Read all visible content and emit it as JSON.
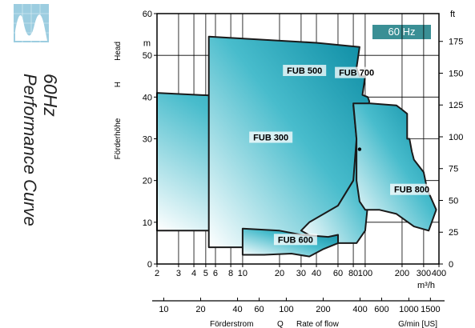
{
  "header": {
    "freq_title": "60Hz",
    "subtitle": "Performance Curve",
    "badge": "60 Hz",
    "logo_icon": "performance-curve-logo-icon"
  },
  "chart_data": {
    "type": "area",
    "xscale": "log",
    "xlim": [
      2,
      400
    ],
    "ylim": [
      0,
      60
    ],
    "x_ticks": [
      2,
      3,
      4,
      5,
      6,
      8,
      10,
      20,
      30,
      40,
      60,
      80,
      100,
      200,
      300,
      400
    ],
    "x_tick_labels": [
      "2",
      "3",
      "4",
      "5",
      "6",
      "8",
      "10",
      "20",
      "30",
      "40",
      "60",
      "80",
      "100",
      "200",
      "300",
      "400"
    ],
    "xunit": "m³/h",
    "y_ticks": [
      0,
      10,
      20,
      30,
      40,
      50,
      60
    ],
    "yunit": "m",
    "ylabel_de": "Förderhöhe",
    "ylabel_sym": "H",
    "ylabel_en": "Head",
    "ft_unit": "ft",
    "ft_ticks": [
      0,
      25,
      50,
      75,
      100,
      125,
      150,
      175
    ],
    "gpm_ticks": [
      10,
      20,
      40,
      60,
      100,
      200,
      400,
      600,
      1000,
      1500
    ],
    "gpm_label_de": "Förderstrom",
    "gpm_label_sym": "Q",
    "gpm_label_en": "Rate of flow",
    "gpm_unit": "G/min [US]",
    "grid": true,
    "series": [
      {
        "name": "FUB 300",
        "label_at": [
          17,
          30
        ],
        "points": [
          [
            2,
            41
          ],
          [
            10,
            40
          ],
          [
            30,
            37
          ],
          [
            100,
            36.5
          ],
          [
            130,
            36
          ],
          [
            130,
            31
          ],
          [
            140,
            31
          ],
          [
            140,
            27
          ],
          [
            130,
            20
          ],
          [
            80,
            12
          ],
          [
            50,
            8.5
          ],
          [
            20,
            8
          ],
          [
            10,
            8
          ],
          [
            5,
            8
          ],
          [
            2,
            8
          ]
        ]
      },
      {
        "name": "FUB 500",
        "label_at": [
          32,
          46
        ],
        "points": [
          [
            5.3,
            54.5
          ],
          [
            40,
            53
          ],
          [
            90,
            52
          ],
          [
            85,
            47
          ],
          [
            90,
            45
          ],
          [
            100,
            45
          ],
          [
            95,
            40.5
          ],
          [
            105,
            40
          ],
          [
            108,
            39
          ],
          [
            100,
            30
          ],
          [
            80,
            20
          ],
          [
            60,
            14
          ],
          [
            30,
            4
          ],
          [
            20,
            4
          ],
          [
            5.3,
            4
          ]
        ]
      },
      {
        "name": "FUB 700",
        "label_at": [
          85,
          45.5
        ],
        "points": [
          [
            80,
            38
          ],
          [
            90,
            38
          ],
          [
            100,
            36
          ],
          [
            110,
            36
          ],
          [
            130,
            35
          ],
          [
            120,
            33
          ],
          [
            110,
            25
          ],
          [
            110,
            20
          ],
          [
            100,
            8
          ],
          [
            85,
            5
          ],
          [
            50,
            5
          ],
          [
            40,
            6
          ],
          [
            30,
            8
          ],
          [
            35,
            10
          ],
          [
            60,
            14
          ],
          [
            80,
            20
          ],
          [
            85,
            30
          ],
          [
            80,
            38
          ]
        ]
      },
      {
        "name": "FUB 800",
        "label_at": [
          240,
          17.5
        ],
        "points": [
          [
            80,
            38.5
          ],
          [
            110,
            38.5
          ],
          [
            180,
            38
          ],
          [
            200,
            37
          ],
          [
            220,
            36
          ],
          [
            220,
            30
          ],
          [
            230,
            30
          ],
          [
            240,
            27
          ],
          [
            250,
            25
          ],
          [
            300,
            22
          ],
          [
            320,
            18
          ],
          [
            380,
            13
          ],
          [
            330,
            8
          ],
          [
            250,
            9
          ],
          [
            180,
            12
          ],
          [
            130,
            13
          ],
          [
            100,
            13
          ],
          [
            90,
            15
          ],
          [
            85,
            20
          ],
          [
            85,
            30
          ],
          [
            80,
            38.5
          ]
        ]
      },
      {
        "name": "FUB 600",
        "label_at": [
          27,
          5.5
        ],
        "points": [
          [
            10,
            8.5
          ],
          [
            20,
            8
          ],
          [
            30,
            7
          ],
          [
            50,
            6.5
          ],
          [
            60,
            7
          ],
          [
            60,
            5
          ],
          [
            45,
            3.5
          ],
          [
            35,
            1.8
          ],
          [
            25,
            2.5
          ],
          [
            15,
            2.2
          ],
          [
            10,
            2.2
          ]
        ]
      }
    ],
    "marker": [
      90,
      27.5
    ]
  }
}
